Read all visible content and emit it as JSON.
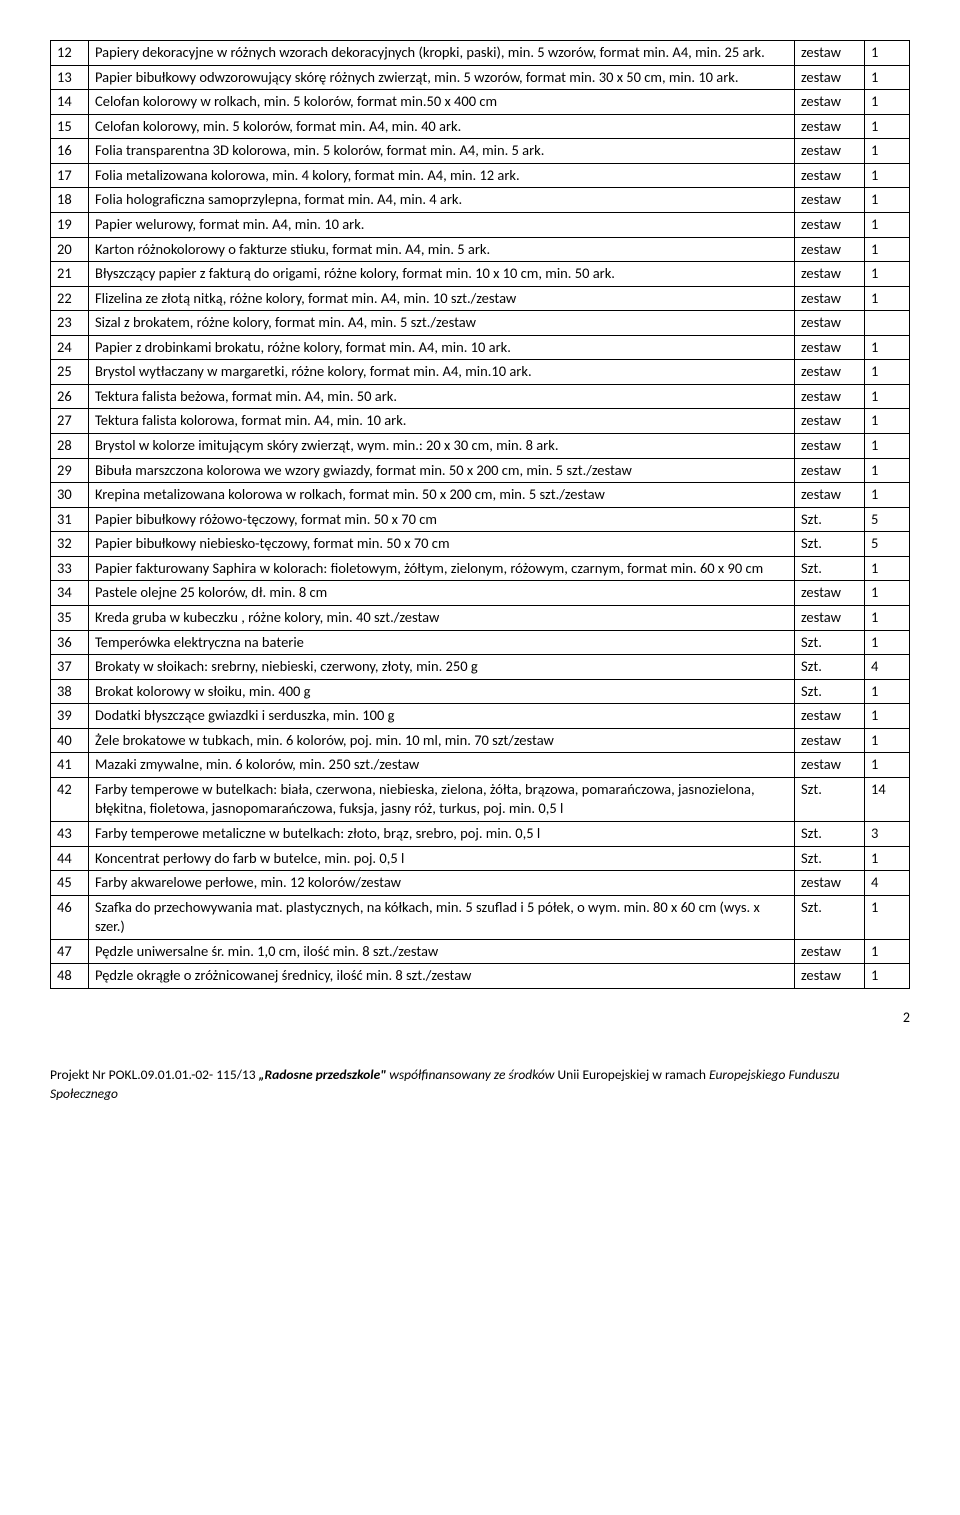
{
  "rows": [
    {
      "n": "12",
      "desc": "Papiery dekoracyjne w różnych wzorach dekoracyjnych (kropki, paski), min. 5 wzorów, format min. A4, min. 25 ark.",
      "unit": "zestaw",
      "qty": "1"
    },
    {
      "n": "13",
      "desc": "Papier bibułkowy odwzorowujący skórę różnych zwierząt, min. 5 wzorów, format min. 30 x 50 cm, min. 10 ark.",
      "unit": "zestaw",
      "qty": "1"
    },
    {
      "n": "14",
      "desc": "Celofan kolorowy w rolkach, min. 5 kolorów,  format min.50 x 400 cm",
      "unit": "zestaw",
      "qty": "1"
    },
    {
      "n": "15",
      "desc": "Celofan kolorowy, min. 5 kolorów, format min. A4, min. 40 ark.",
      "unit": "zestaw",
      "qty": "1"
    },
    {
      "n": "16",
      "desc": "Folia transparentna 3D kolorowa, min. 5 kolorów, format min. A4, min. 5 ark.",
      "unit": "zestaw",
      "qty": "1"
    },
    {
      "n": "17",
      "desc": "Folia metalizowana kolorowa, min. 4 kolory, format min. A4, min. 12 ark.",
      "unit": "zestaw",
      "qty": "1"
    },
    {
      "n": "18",
      "desc": "Folia holograficzna samoprzylepna, format min. A4, min. 4 ark.",
      "unit": "zestaw",
      "qty": "1"
    },
    {
      "n": "19",
      "desc": "Papier welurowy, format min. A4, min. 10 ark.",
      "unit": "zestaw",
      "qty": "1"
    },
    {
      "n": "20",
      "desc": "Karton różnokolorowy o fakturze stiuku, format min. A4, min. 5 ark.",
      "unit": "zestaw",
      "qty": "1"
    },
    {
      "n": "21",
      "desc": "Błyszczący papier z fakturą do origami, różne kolory, format min. 10 x 10 cm, min. 50 ark.",
      "unit": "zestaw",
      "qty": "1"
    },
    {
      "n": "22",
      "desc": "Flizelina ze złotą nitką, różne kolory, format min. A4, min. 10 szt./zestaw",
      "unit": "zestaw",
      "qty": "1"
    },
    {
      "n": "23",
      "desc": "Sizal z brokatem, różne kolory, format min. A4, min. 5 szt./zestaw",
      "unit": "zestaw",
      "qty": ""
    },
    {
      "n": "24",
      "desc": "Papier z drobinkami brokatu, różne kolory, format min. A4, min. 10 ark.",
      "unit": "zestaw",
      "qty": "1"
    },
    {
      "n": "25",
      "desc": "Brystol wytłaczany w margaretki, różne kolory, format min. A4, min.10 ark.",
      "unit": "zestaw",
      "qty": "1"
    },
    {
      "n": "26",
      "desc": "Tektura falista beżowa, format min. A4, min. 50 ark.",
      "unit": "zestaw",
      "qty": "1"
    },
    {
      "n": "27",
      "desc": "Tektura falista kolorowa, format min. A4, min. 10 ark.",
      "unit": "zestaw",
      "qty": "1"
    },
    {
      "n": "28",
      "desc": "Brystol w kolorze imitującym skóry zwierząt, wym. min.: 20 x 30 cm, min. 8 ark.",
      "unit": "zestaw",
      "qty": "1"
    },
    {
      "n": "29",
      "desc": "Bibuła marszczona kolorowa we wzory gwiazdy, format min. 50 x 200 cm, min. 5 szt./zestaw",
      "unit": "zestaw",
      "qty": "1"
    },
    {
      "n": "30",
      "desc": "Krepina metalizowana kolorowa w rolkach, format min. 50 x 200 cm, min. 5 szt./zestaw",
      "unit": "zestaw",
      "qty": "1"
    },
    {
      "n": "31",
      "desc": "Papier bibułkowy różowo-tęczowy, format min. 50 x 70 cm",
      "unit": "Szt.",
      "qty": "5"
    },
    {
      "n": "32",
      "desc": "Papier bibułkowy niebiesko-tęczowy, format min. 50 x 70 cm",
      "unit": "Szt.",
      "qty": "5"
    },
    {
      "n": "33",
      "desc": "Papier fakturowany Saphira w kolorach: fioletowym, żółtym, zielonym, różowym, czarnym, format min. 60 x 90 cm",
      "unit": "Szt.",
      "qty": "1"
    },
    {
      "n": "34",
      "desc": "Pastele olejne 25 kolorów, dł. min. 8 cm",
      "unit": "zestaw",
      "qty": "1"
    },
    {
      "n": "35",
      "desc": "Kreda gruba w kubeczku , różne kolory, min. 40 szt./zestaw",
      "unit": "zestaw",
      "qty": "1"
    },
    {
      "n": "36",
      "desc": "Temperówka elektryczna na baterie",
      "unit": "Szt.",
      "qty": "1"
    },
    {
      "n": "37",
      "desc": "Brokaty w słoikach: srebrny, niebieski, czerwony, złoty, min. 250 g",
      "unit": "Szt.",
      "qty": "4"
    },
    {
      "n": "38",
      "desc": "Brokat kolorowy w słoiku, min. 400 g",
      "unit": "Szt.",
      "qty": "1"
    },
    {
      "n": "39",
      "desc": "Dodatki błyszczące gwiazdki i serduszka, min. 100 g",
      "unit": "zestaw",
      "qty": "1"
    },
    {
      "n": "40",
      "desc": "Żele brokatowe w tubkach, min. 6 kolorów, poj. min. 10 ml, min. 70 szt/zestaw",
      "unit": "zestaw",
      "qty": "1"
    },
    {
      "n": "41",
      "desc": "Mazaki zmywalne, min. 6 kolorów, min. 250 szt./zestaw",
      "unit": "zestaw",
      "qty": "1"
    },
    {
      "n": "42",
      "desc": "Farby temperowe w butelkach: biała, czerwona, niebieska, zielona, żółta, brązowa, pomarańczowa, jasnozielona, błękitna, fioletowa, jasnopomarańczowa, fuksja, jasny róż, turkus, poj. min. 0,5 l",
      "unit": "Szt.",
      "qty": "14"
    },
    {
      "n": "43",
      "desc": "Farby temperowe metaliczne w butelkach: złoto, brąz, srebro, poj. min. 0,5 l",
      "unit": "Szt.",
      "qty": "3"
    },
    {
      "n": "44",
      "desc": "Koncentrat perłowy do farb w butelce, min. poj. 0,5 l",
      "unit": "Szt.",
      "qty": "1"
    },
    {
      "n": "45",
      "desc": "Farby akwarelowe perłowe, min. 12 kolorów/zestaw",
      "unit": "zestaw",
      "qty": "4"
    },
    {
      "n": "46",
      "desc": "Szafka do przechowywania mat. plastycznych, na kółkach, min. 5 szuflad i 5 półek, o wym. min. 80 x 60 cm  (wys. x szer.)",
      "unit": "Szt.",
      "qty": "1"
    },
    {
      "n": "47",
      "desc": "Pędzle uniwersalne śr.  min. 1,0 cm, ilość  min. 8 szt./zestaw",
      "unit": "zestaw",
      "qty": "1"
    },
    {
      "n": "48",
      "desc": "Pędzle okrągłe o zróżnicowanej średnicy, ilość min. 8 szt./zestaw",
      "unit": "zestaw",
      "qty": "1"
    }
  ],
  "footer": {
    "proj_prefix": "Projekt Nr POKL.09.01.01.-02- 115/13 ",
    "proj_title": "„Radosne przedszkole\"",
    "proj_mid": " współfinansowany ze środków ",
    "proj_suffix": "Unii Europejskiej w ramach ",
    "proj_fund": "Europejskiego Funduszu Społecznego"
  },
  "page_number": "2"
}
